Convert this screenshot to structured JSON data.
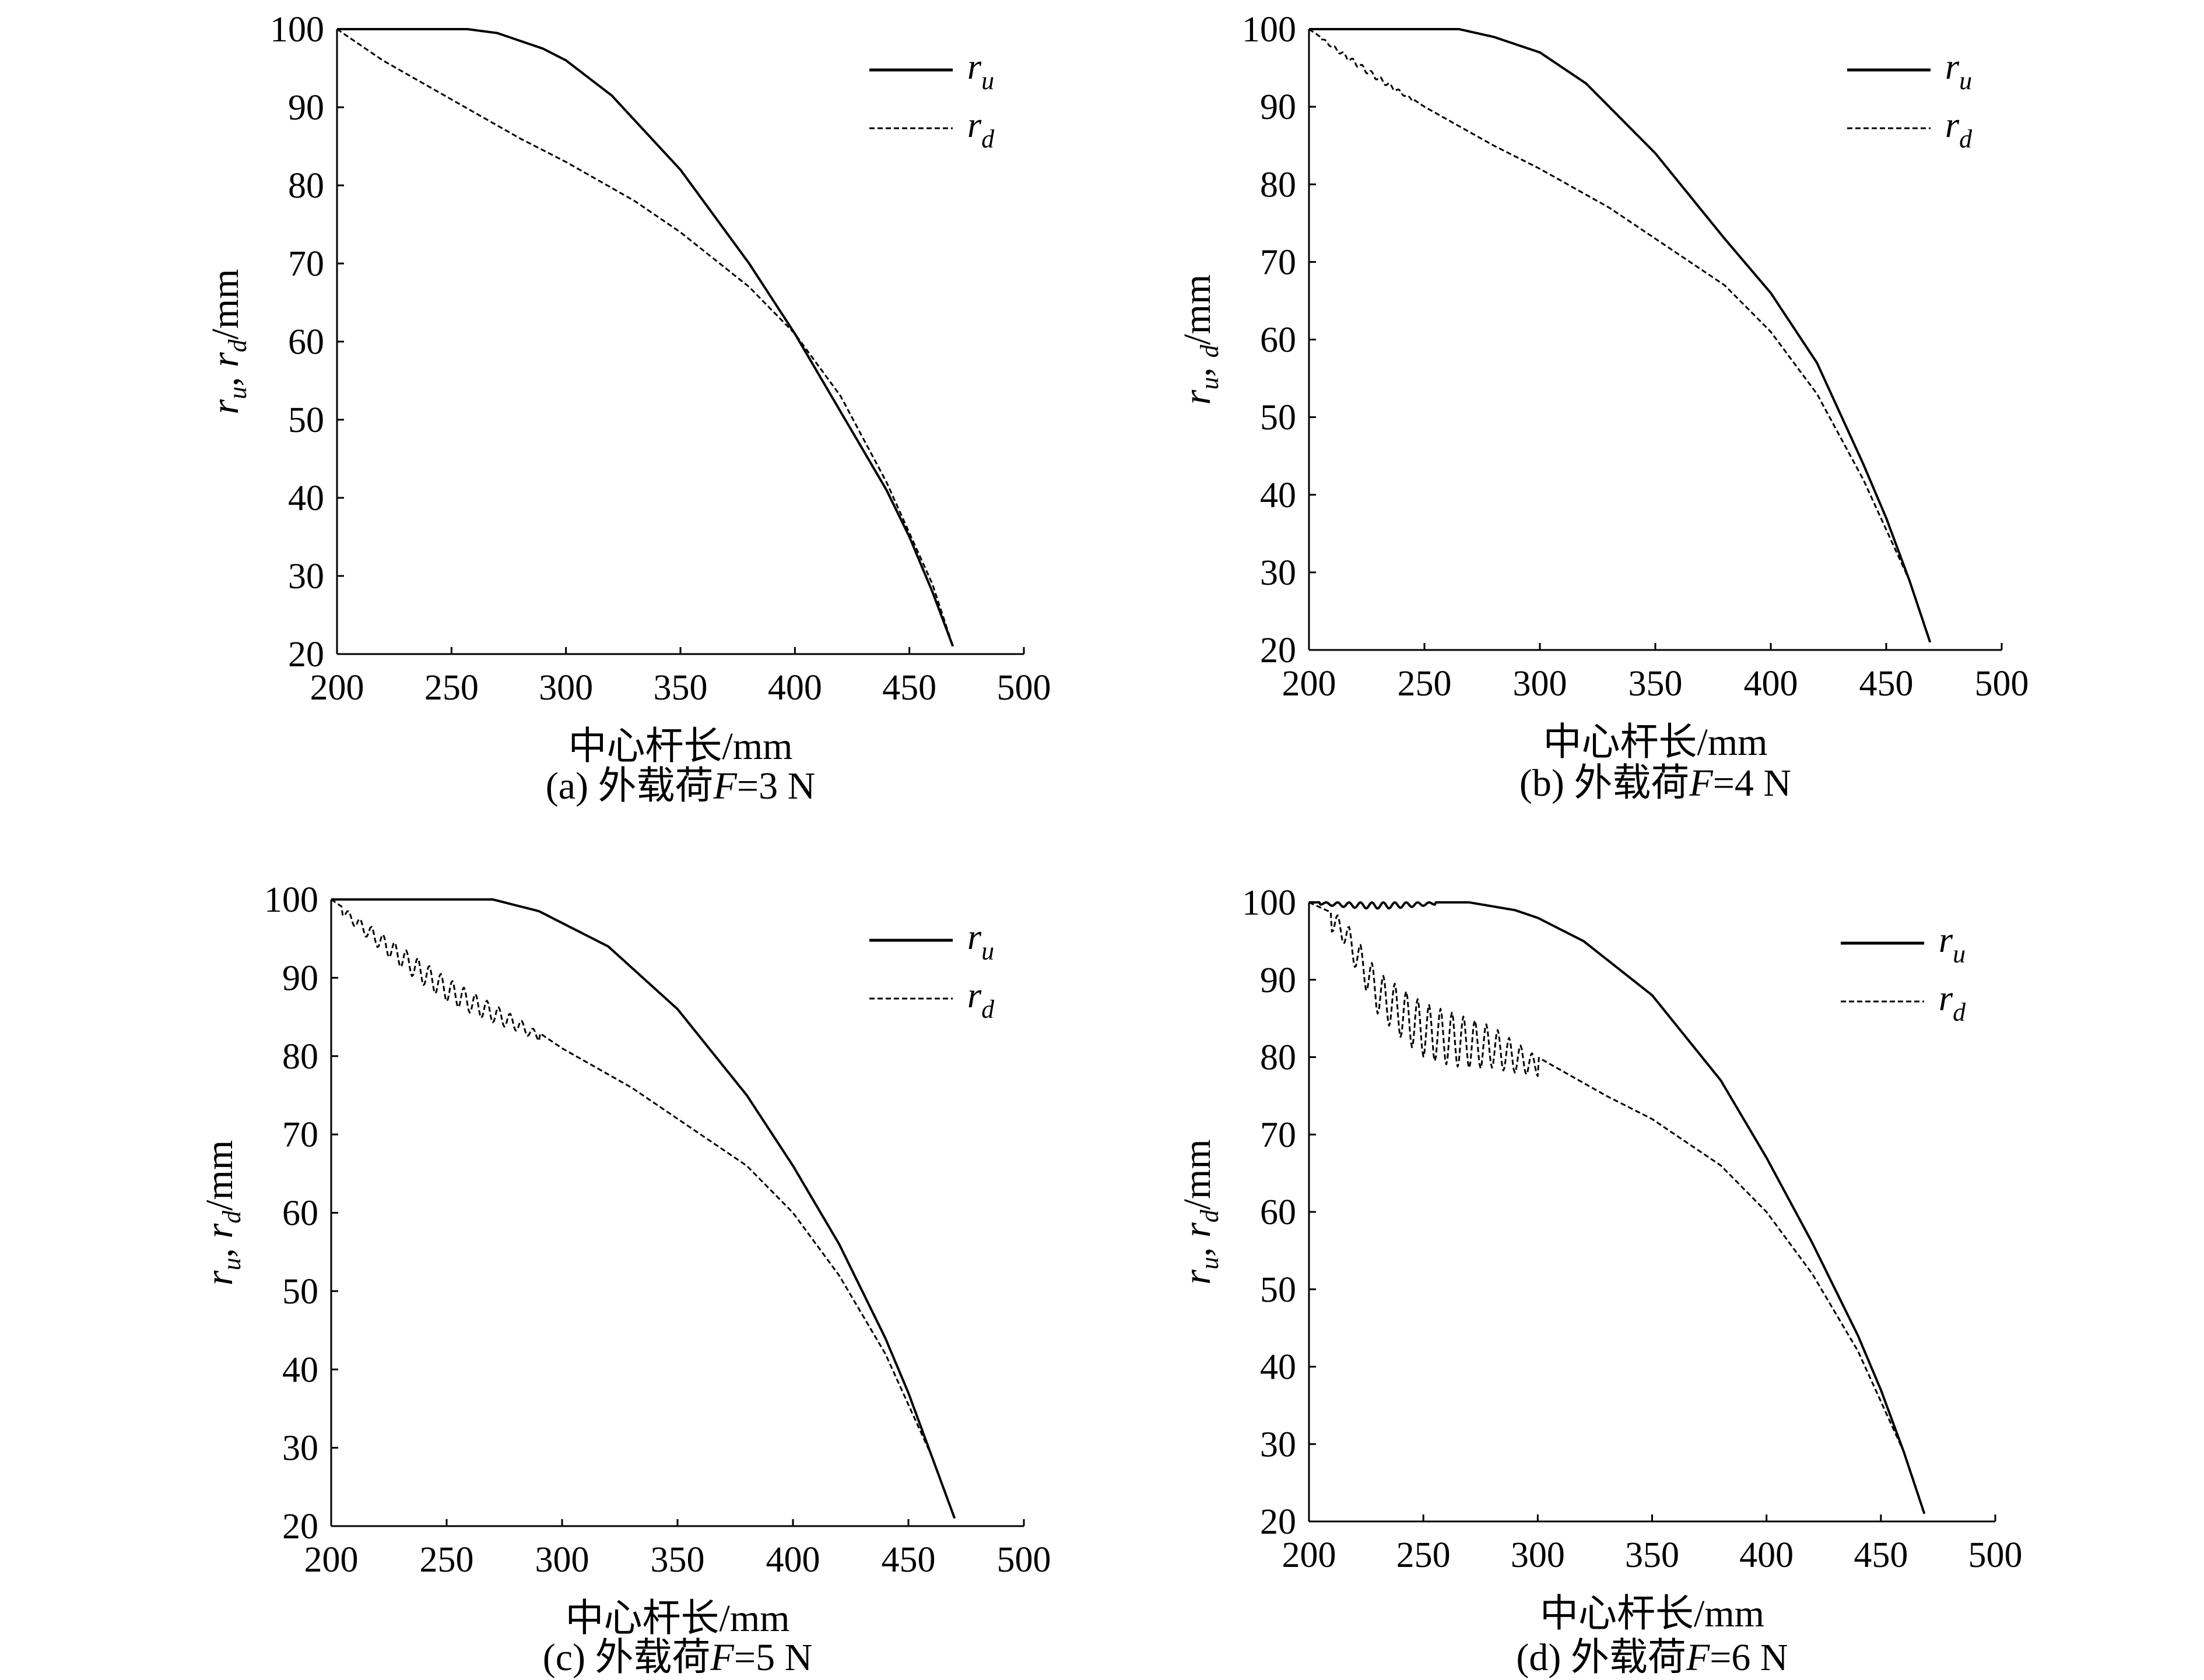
{
  "figure": {
    "panels": [
      {
        "caption": "(a) 外载荷F=3 N",
        "caption_parts": {
          "prefix": "(a) 外载荷",
          "var": "F",
          "suffix": "=3 N"
        },
        "ylabel": "r_u, r_d/mm",
        "ylabel_parts": [
          "r",
          "u",
          ", ",
          "r",
          "d",
          "/mm"
        ]
      },
      {
        "caption": "(b) 外载荷F=4 N",
        "caption_parts": {
          "prefix": "(b) 外载荷",
          "var": "F",
          "suffix": "=4 N"
        },
        "ylabel": "r_u, _d/mm",
        "ylabel_parts": [
          "r",
          "u",
          ", ",
          "",
          "d",
          "/mm"
        ]
      },
      {
        "caption": "(c) 外载荷F=5 N",
        "caption_parts": {
          "prefix": "(c) 外载荷",
          "var": "F",
          "suffix": "=5 N"
        },
        "ylabel": "r_u, r_d/mm",
        "ylabel_parts": [
          "r",
          "u",
          ", ",
          "r",
          "d",
          "/mm"
        ]
      },
      {
        "caption": "(d) 外载荷F=6 N",
        "caption_parts": {
          "prefix": "(d) 外载荷",
          "var": "F",
          "suffix": "=6 N"
        },
        "ylabel": "r_u, r_d/mm",
        "ylabel_parts": [
          "r",
          "u",
          ", ",
          "r",
          "d",
          "/mm"
        ]
      }
    ]
  },
  "chart_data": [
    {
      "type": "line",
      "title": "(a) 外载荷F=3 N",
      "xlabel": "中心杆长/mm",
      "ylabel": "r_u, r_d/mm",
      "xlim": [
        200,
        500
      ],
      "ylim": [
        20,
        100
      ],
      "xticks": [
        200,
        250,
        300,
        350,
        400,
        450,
        500
      ],
      "yticks": [
        20,
        30,
        40,
        50,
        60,
        70,
        80,
        90,
        100
      ],
      "legend_position": "top-right",
      "series": [
        {
          "name": "r_u",
          "label_base": "r",
          "label_sub": "u",
          "style": "solid",
          "x": [
            200,
            257,
            270,
            290,
            300,
            320,
            350,
            380,
            400,
            420,
            440,
            450,
            460,
            469
          ],
          "y": [
            100,
            100,
            99.5,
            97.5,
            96,
            91.5,
            82,
            70,
            61,
            51,
            41,
            35,
            28,
            21
          ]
        },
        {
          "name": "r_d",
          "label_base": "r",
          "label_sub": "d",
          "style": "dashed",
          "oscillation": {
            "x_start": 200,
            "x_end": 200,
            "amplitude": 0,
            "period": 10
          },
          "x": [
            200,
            220,
            250,
            280,
            300,
            330,
            350,
            380,
            400,
            420,
            440,
            460,
            469
          ],
          "y": [
            100,
            96,
            91,
            86,
            83,
            78,
            74,
            67,
            61,
            53,
            42,
            29,
            21
          ]
        }
      ]
    },
    {
      "type": "line",
      "title": "(b) 外载荷F=4 N",
      "xlabel": "中心杆长/mm",
      "ylabel": "r_u, _d/mm",
      "xlim": [
        200,
        500
      ],
      "ylim": [
        20,
        100
      ],
      "xticks": [
        200,
        250,
        300,
        350,
        400,
        450,
        500
      ],
      "yticks": [
        20,
        30,
        40,
        50,
        60,
        70,
        80,
        90,
        100
      ],
      "legend_position": "top-right",
      "series": [
        {
          "name": "r_u",
          "label_base": "r",
          "label_sub": "u",
          "style": "solid",
          "x": [
            200,
            265,
            280,
            300,
            320,
            350,
            380,
            400,
            420,
            440,
            450,
            460,
            469
          ],
          "y": [
            100,
            100,
            99,
            97,
            93,
            84,
            73,
            66,
            57,
            44,
            37,
            29,
            21
          ]
        },
        {
          "name": "r_d",
          "label_base": "r",
          "label_sub": "d",
          "style": "dashed",
          "oscillation": {
            "x_start": 205,
            "x_end": 245,
            "amplitude": 0.7,
            "period": 4
          },
          "x": [
            200,
            220,
            250,
            280,
            300,
            330,
            350,
            380,
            400,
            420,
            440,
            460,
            469
          ],
          "y": [
            100,
            96,
            90,
            85,
            82,
            77,
            73,
            67,
            61,
            53,
            42,
            29,
            21
          ]
        }
      ]
    },
    {
      "type": "line",
      "title": "(c) 外载荷F=5 N",
      "xlabel": "中心杆长/mm",
      "ylabel": "r_u, r_d/mm",
      "xlim": [
        200,
        500
      ],
      "ylim": [
        20,
        100
      ],
      "xticks": [
        200,
        250,
        300,
        350,
        400,
        450,
        500
      ],
      "yticks": [
        20,
        30,
        40,
        50,
        60,
        70,
        80,
        90,
        100
      ],
      "legend_position": "top-right",
      "series": [
        {
          "name": "r_u",
          "label_base": "r",
          "label_sub": "u",
          "style": "solid",
          "x": [
            200,
            270,
            290,
            300,
            320,
            350,
            380,
            400,
            420,
            440,
            450,
            460,
            470
          ],
          "y": [
            100,
            100,
            98.5,
            97,
            94,
            86,
            75,
            66,
            56,
            44,
            37,
            29,
            21
          ]
        },
        {
          "name": "r_d",
          "label_base": "r",
          "label_sub": "d",
          "style": "dashed",
          "oscillation": {
            "x_start": 205,
            "x_end": 290,
            "amplitude": 3,
            "period": 5
          },
          "x": [
            200,
            220,
            250,
            280,
            300,
            330,
            350,
            380,
            400,
            420,
            440,
            460,
            470
          ],
          "y": [
            100,
            96,
            90,
            85,
            81,
            76,
            72,
            66,
            60,
            52,
            42,
            29,
            21
          ]
        }
      ]
    },
    {
      "type": "line",
      "title": "(d) 外载荷F=6 N",
      "xlabel": "中心杆长/mm",
      "ylabel": "r_u, r_d/mm",
      "xlim": [
        200,
        500
      ],
      "ylim": [
        20,
        100
      ],
      "xticks": [
        200,
        250,
        300,
        350,
        400,
        450,
        500
      ],
      "yticks": [
        20,
        30,
        40,
        50,
        60,
        70,
        80,
        90,
        100
      ],
      "legend_position": "top-right",
      "series": [
        {
          "name": "r_u",
          "label_base": "r",
          "label_sub": "u",
          "style": "solid",
          "oscillation": {
            "x_start": 205,
            "x_end": 255,
            "amplitude": 0.8,
            "period": 5
          },
          "x": [
            200,
            270,
            290,
            300,
            320,
            350,
            380,
            400,
            420,
            440,
            450,
            460,
            469
          ],
          "y": [
            100,
            100,
            99,
            98,
            95,
            88,
            77,
            67,
            56,
            44,
            37,
            29,
            21
          ]
        },
        {
          "name": "r_d",
          "label_base": "r",
          "label_sub": "d",
          "style": "dashed",
          "oscillation": {
            "x_start": 210,
            "x_end": 300,
            "amplitude": 7,
            "period": 5
          },
          "x": [
            200,
            215,
            230,
            250,
            280,
            300,
            330,
            350,
            380,
            400,
            420,
            440,
            460,
            469
          ],
          "y": [
            100,
            98,
            91,
            87,
            84,
            80,
            75,
            72,
            66,
            60,
            52,
            42,
            29,
            21
          ]
        }
      ]
    }
  ]
}
